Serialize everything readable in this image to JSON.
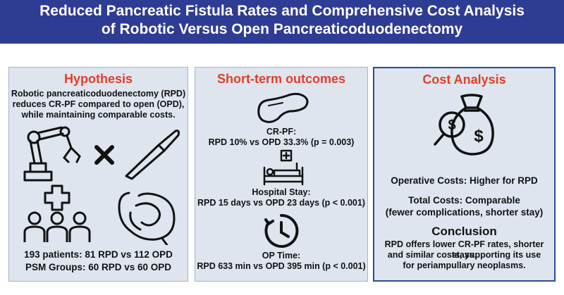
{
  "header": {
    "title_line1": "Reduced Pancreatic Fistula Rates and Comprehensive Cost Analysis",
    "title_line2": "of Robotic Versus Open Pancreaticoduodenectomy"
  },
  "hypothesis": {
    "title": "Hypothesis",
    "text_lines": [
      "Robotic pancreaticoduodenectomy (RPD)",
      "reduces CR-PF compared to open (OPD),",
      "while maintaining comparable costs."
    ],
    "stats_lines": [
      "193 patients: 81 RPD vs 112 OPD",
      "PSM Groups: 60 RPD vs 60 OPD"
    ],
    "icons": [
      "robotic-arm-icon",
      "versus-x-icon",
      "scalpel-icon",
      "patients-group-icon",
      "intestine-icon"
    ]
  },
  "outcomes": {
    "title": "Short-term outcomes",
    "items": [
      {
        "label": "CR-PF:",
        "value": "RPD 10% vs OPD 33.3% (p = 0.003)",
        "icon": "pancreas-icon"
      },
      {
        "label": "Hospital Stay:",
        "value": "RPD 15 days vs OPD 23 days (p < 0.001)",
        "icon": "hospital-bed-icon"
      },
      {
        "label": "OP Time:",
        "value": "RPD 633 min vs OPD 395 min (p < 0.001)",
        "icon": "clock-icon"
      }
    ]
  },
  "cost": {
    "title": "Cost Analysis",
    "icon": "money-bag-search-icon",
    "operative": "Operative Costs: Higher for RPD",
    "total_line1": "Total Costs: Comparable",
    "total_line2": "(fewer complications, shorter stay)",
    "conclusion_title": "Conclusion",
    "conclusion_lines": [
      "RPD offers lower CR-PF rates, shorter stays,",
      "and similar costs, supporting its use",
      "for periampullary neoplasms."
    ]
  }
}
